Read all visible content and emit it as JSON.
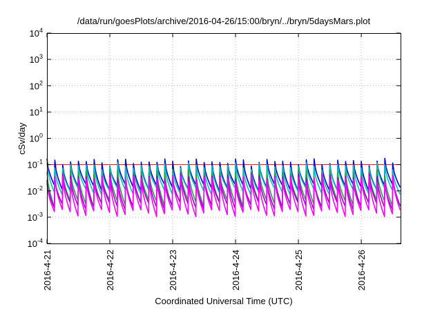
{
  "chart_data": {
    "type": "line",
    "title": "/data/run/goesPlots/archive/2016-04-26/15:00/bryn/../bryn/5daysMars.plot",
    "xlabel": "Coordinated Universal Time (UTC)",
    "ylabel": "cSv/day",
    "yscale": "log",
    "ylim": [
      0.0001,
      10000
    ],
    "y_ticks": [
      {
        "base": "10",
        "exp": "4"
      },
      {
        "base": "10",
        "exp": "3"
      },
      {
        "base": "10",
        "exp": "2"
      },
      {
        "base": "10",
        "exp": "1"
      },
      {
        "base": "10",
        "exp": "0"
      },
      {
        "base": "10",
        "exp": "-1"
      },
      {
        "base": "10",
        "exp": "-2"
      },
      {
        "base": "10",
        "exp": "-3"
      },
      {
        "base": "10",
        "exp": "-4"
      }
    ],
    "xlim": [
      "2016-04-21",
      "2016-04-26 15:00"
    ],
    "x_ticks": [
      "2016-4-21",
      "2016-4-22",
      "2016-4-23",
      "2016-4-24",
      "2016-4-25",
      "2016-4-26"
    ],
    "grid": true,
    "period_hours": 3,
    "series": [
      {
        "color": "#ff0000",
        "values": [
          0.1,
          0.1,
          0.1,
          0.1,
          0.1
        ]
      },
      {
        "color": "#0000cc",
        "peak": 0.13,
        "trough": 0.014
      },
      {
        "color": "#00c0c0",
        "peak": 0.09,
        "trough": 0.01
      },
      {
        "color": "#20a040",
        "peak": 0.05,
        "trough": 0.0035
      },
      {
        "color": "#9900cc",
        "peak": 0.035,
        "trough": 0.0028
      },
      {
        "color": "#ff00ff",
        "peak": 0.03,
        "trough": 0.0015
      }
    ]
  }
}
